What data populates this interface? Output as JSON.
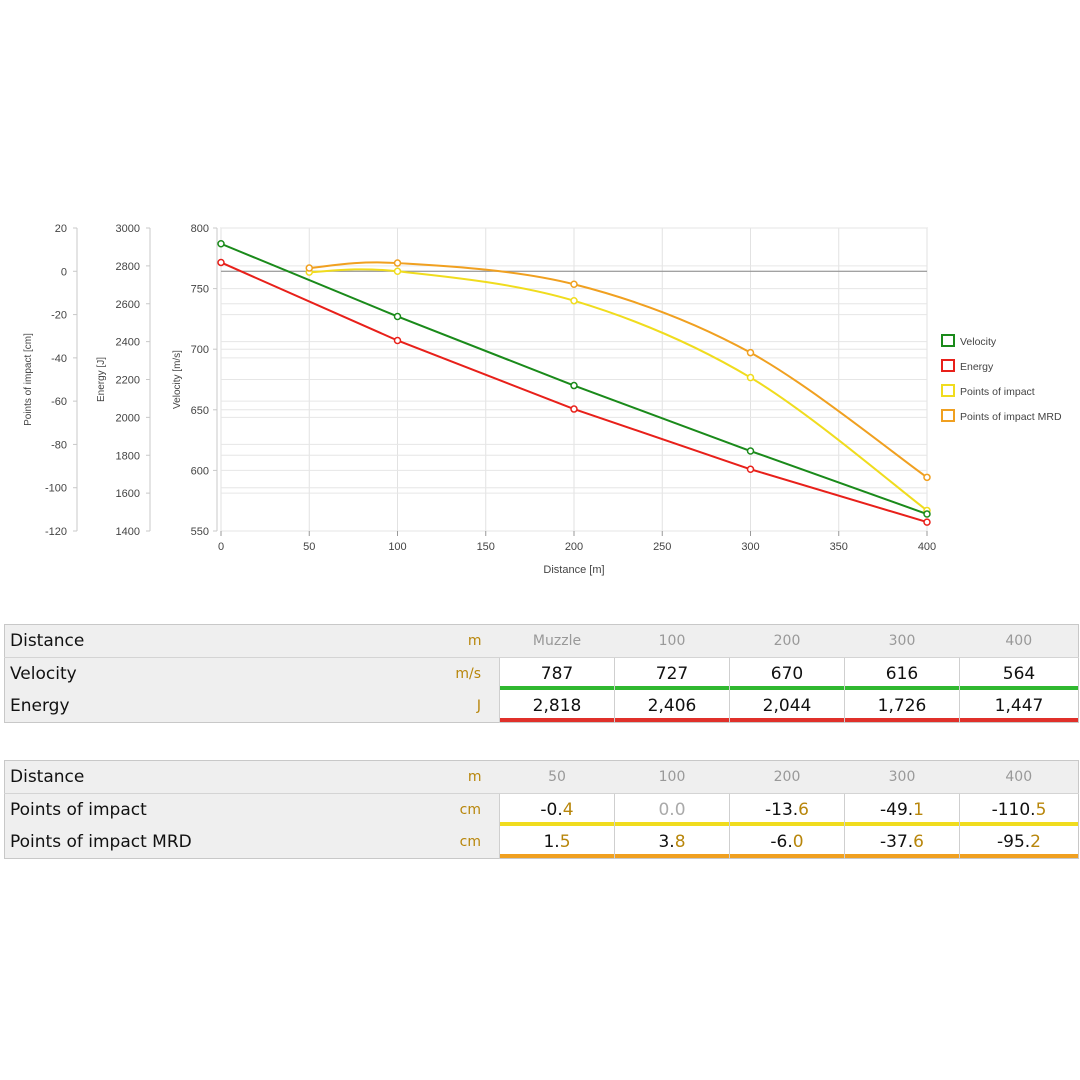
{
  "chart_data": {
    "type": "line",
    "xlabel": "Distance [m]",
    "x_ticks": [
      0,
      50,
      100,
      150,
      200,
      250,
      300,
      350,
      400
    ],
    "xlim": [
      0,
      400
    ],
    "y_axes": [
      {
        "id": "poi",
        "label": "Points of impact [cm]",
        "ticks": [
          20,
          0,
          -20,
          -40,
          -60,
          -80,
          -100,
          -120
        ],
        "ylim": [
          -120,
          20
        ]
      },
      {
        "id": "energy",
        "label": "Energy [J]",
        "ticks": [
          3000,
          2800,
          2600,
          2400,
          2200,
          2000,
          1800,
          1600,
          1400
        ],
        "ylim": [
          1400,
          3000
        ]
      },
      {
        "id": "velocity",
        "label": "Velocity [m/s]",
        "ticks": [
          800,
          750,
          700,
          650,
          600,
          550
        ],
        "ylim": [
          550,
          800
        ]
      }
    ],
    "series": [
      {
        "name": "Velocity",
        "axis": "velocity",
        "color": "#1a8a1a",
        "x": [
          0,
          100,
          200,
          300,
          400
        ],
        "y": [
          787,
          727,
          670,
          616,
          564
        ]
      },
      {
        "name": "Energy",
        "axis": "energy",
        "color": "#e8201a",
        "x": [
          0,
          100,
          200,
          300,
          400
        ],
        "y": [
          2818,
          2406,
          2044,
          1726,
          1447
        ]
      },
      {
        "name": "Points of impact",
        "axis": "poi",
        "color": "#f0dc1e",
        "x": [
          50,
          100,
          200,
          300,
          400
        ],
        "y": [
          -0.4,
          0.0,
          -13.6,
          -49.1,
          -110.5
        ]
      },
      {
        "name": "Points of impact MRD",
        "axis": "poi",
        "color": "#f0a020",
        "x": [
          50,
          100,
          200,
          300,
          400
        ],
        "y": [
          1.5,
          3.8,
          -6.0,
          -37.6,
          -95.2
        ]
      }
    ],
    "legend_position": "right",
    "grid": true
  },
  "table1": {
    "header": {
      "label": "Distance",
      "unit": "m",
      "cols": [
        "Muzzle",
        "100",
        "200",
        "300",
        "400"
      ]
    },
    "rows": [
      {
        "label": "Velocity",
        "unit": "m/s",
        "values": [
          "787",
          "727",
          "670",
          "616",
          "564"
        ],
        "bar": "green"
      },
      {
        "label": "Energy",
        "unit": "J",
        "values": [
          "2,818",
          "2,406",
          "2,044",
          "1,726",
          "1,447"
        ],
        "bar": "red"
      }
    ]
  },
  "table2": {
    "header": {
      "label": "Distance",
      "unit": "m",
      "cols": [
        "50",
        "100",
        "200",
        "300",
        "400"
      ]
    },
    "rows": [
      {
        "label": "Points of impact",
        "unit": "cm",
        "values": [
          [
            "-0.",
            "4"
          ],
          [
            "0.0",
            ""
          ],
          [
            "-13.",
            "6"
          ],
          [
            "-49.",
            "1"
          ],
          [
            "-110.",
            "5"
          ]
        ],
        "bar": "yellow"
      },
      {
        "label": "Points of impact MRD",
        "unit": "cm",
        "values": [
          [
            "1.",
            "5"
          ],
          [
            "3.",
            "8"
          ],
          [
            "-6.",
            "0"
          ],
          [
            "-37.",
            "6"
          ],
          [
            "-95.",
            "2"
          ]
        ],
        "bar": "orange"
      }
    ]
  }
}
